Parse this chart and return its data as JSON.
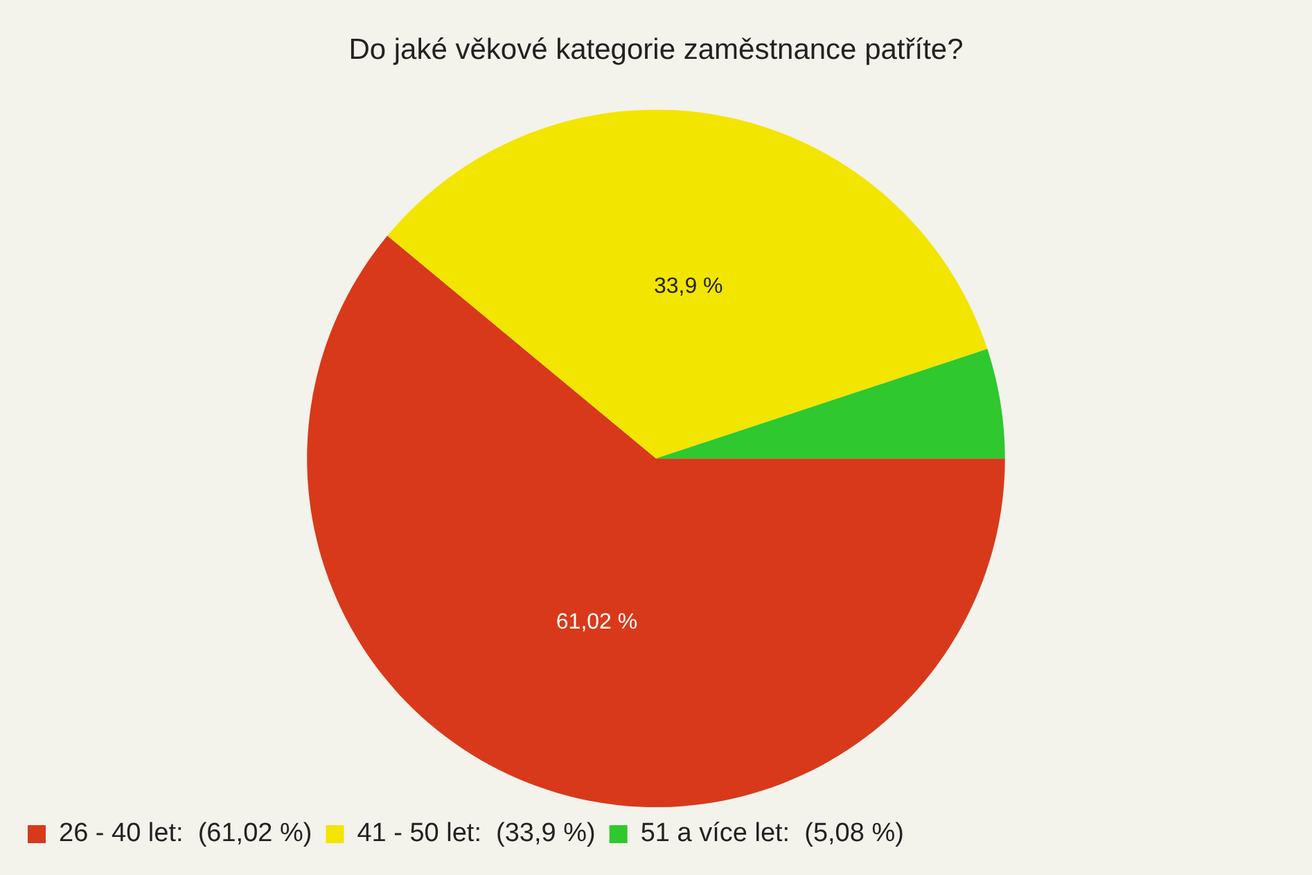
{
  "chart_data": {
    "type": "pie",
    "title": "Do jaké věkové kategorie zaměstnance patříte?",
    "categories": [
      "26 - 40 let:  (61,02 %)",
      "41 - 50 let:  (33,9 %)",
      "51 a více let:  (5,08 %)"
    ],
    "values": [
      61.02,
      33.9,
      5.08
    ],
    "colors": [
      "#d8391b",
      "#f2e500",
      "#2fc82f"
    ],
    "value_labels": [
      "61,02 %",
      "33,9 %",
      null
    ],
    "legend": "bottom left"
  }
}
